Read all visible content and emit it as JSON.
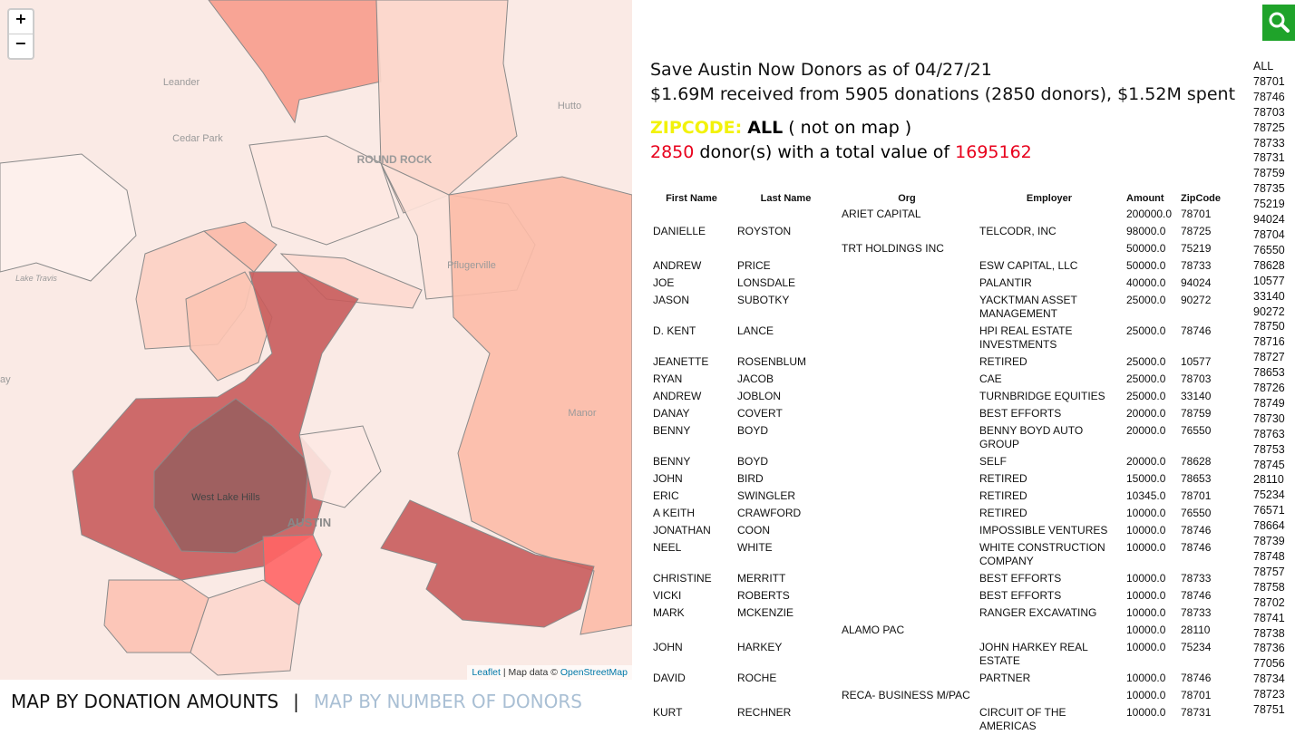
{
  "map": {
    "zoom_in": "+",
    "zoom_out": "−",
    "labels": [
      "Leander",
      "Cedar Park",
      "ROUND ROCK",
      "Hutto",
      "Pflugerville",
      "Lake Travis",
      "ay",
      "Manor",
      "West Lake Hills",
      "AUSTIN"
    ],
    "attribution": {
      "leaflet": "Leaflet",
      "text": "| Map data ©",
      "osm": "OpenStreetMap"
    }
  },
  "tabs": {
    "amounts": "MAP BY DONATION AMOUNTS",
    "separator": "|",
    "donors": "MAP BY NUMBER OF DONORS"
  },
  "header": {
    "title": "Save Austin Now Donors as of 04/27/21",
    "summary": "$1.69M received from 5905 donations (2850 donors), $1.52M spent"
  },
  "selection": {
    "label": "ZIPCODE:",
    "zip": "ALL",
    "note": "( not on map )",
    "donor_count": "2850",
    "donor_text": "donor(s) with a total value of",
    "total": "1695162"
  },
  "table": {
    "columns": [
      "First Name",
      "Last Name",
      "Org",
      "Employer",
      "Amount",
      "ZipCode"
    ],
    "rows": [
      [
        null,
        null,
        "ARIET CAPITAL",
        null,
        "200000.0",
        "78701"
      ],
      [
        "DANIELLE",
        "ROYSTON",
        null,
        "TELCODR, INC",
        "98000.0",
        "78725"
      ],
      [
        null,
        null,
        "TRT HOLDINGS INC",
        null,
        "50000.0",
        "75219"
      ],
      [
        "ANDREW",
        "PRICE",
        null,
        "ESW CAPITAL, LLC",
        "50000.0",
        "78733"
      ],
      [
        "JOE",
        "LONSDALE",
        null,
        "PALANTIR",
        "40000.0",
        "94024"
      ],
      [
        "JASON",
        "SUBOTKY",
        null,
        "YACKTMAN ASSET MANAGEMENT",
        "25000.0",
        "90272"
      ],
      [
        "D. KENT",
        "LANCE",
        null,
        "HPI REAL ESTATE INVESTMENTS",
        "25000.0",
        "78746"
      ],
      [
        "JEANETTE",
        "ROSENBLUM",
        null,
        "RETIRED",
        "25000.0",
        "10577"
      ],
      [
        "RYAN",
        "JACOB",
        null,
        "CAE",
        "25000.0",
        "78703"
      ],
      [
        "ANDREW",
        "JOBLON",
        null,
        "TURNBRIDGE EQUITIES",
        "25000.0",
        "33140"
      ],
      [
        "DANAY",
        "COVERT",
        null,
        "BEST EFFORTS",
        "20000.0",
        "78759"
      ],
      [
        "BENNY",
        "BOYD",
        null,
        "BENNY BOYD AUTO GROUP",
        "20000.0",
        "76550"
      ],
      [
        "BENNY",
        "BOYD",
        null,
        "SELF",
        "20000.0",
        "78628"
      ],
      [
        "JOHN",
        "BIRD",
        null,
        "RETIRED",
        "15000.0",
        "78653"
      ],
      [
        "ERIC",
        "SWINGLER",
        null,
        "RETIRED",
        "10345.0",
        "78701"
      ],
      [
        "A KEITH",
        "CRAWFORD",
        null,
        "RETIRED",
        "10000.0",
        "76550"
      ],
      [
        "JONATHAN",
        "COON",
        null,
        "IMPOSSIBLE VENTURES",
        "10000.0",
        "78746"
      ],
      [
        "NEEL",
        "WHITE",
        null,
        "WHITE CONSTRUCTION COMPANY",
        "10000.0",
        "78746"
      ],
      [
        "CHRISTINE",
        "MERRITT",
        null,
        "BEST EFFORTS",
        "10000.0",
        "78733"
      ],
      [
        "VICKI",
        "ROBERTS",
        null,
        "BEST EFFORTS",
        "10000.0",
        "78746"
      ],
      [
        "MARK",
        "MCKENZIE",
        null,
        "RANGER EXCAVATING",
        "10000.0",
        "78733"
      ],
      [
        null,
        null,
        "ALAMO PAC",
        null,
        "10000.0",
        "28110"
      ],
      [
        "JOHN",
        "HARKEY",
        null,
        "JOHN HARKEY REAL ESTATE",
        "10000.0",
        "75234"
      ],
      [
        "DAVID",
        "ROCHE",
        null,
        "PARTNER",
        "10000.0",
        "78746"
      ],
      [
        null,
        null,
        "RECA- BUSINESS M/PAC",
        null,
        "10000.0",
        "78701"
      ],
      [
        "KURT",
        "RECHNER",
        null,
        "CIRCUIT OF THE AMERICAS",
        "10000.0",
        "78731"
      ]
    ]
  },
  "zip_list": [
    "ALL",
    "78701",
    "78746",
    "78703",
    "78725",
    "78733",
    "78731",
    "78759",
    "78735",
    "75219",
    "94024",
    "78704",
    "76550",
    "78628",
    "10577",
    "33140",
    "90272",
    "78750",
    "78716",
    "78727",
    "78653",
    "78726",
    "78749",
    "78730",
    "78763",
    "78753",
    "78745",
    "28110",
    "75234",
    "76571",
    "78664",
    "78739",
    "78748",
    "78757",
    "78758",
    "78702",
    "78741",
    "78738",
    "78736",
    "77056",
    "78734",
    "78723",
    "78751"
  ]
}
